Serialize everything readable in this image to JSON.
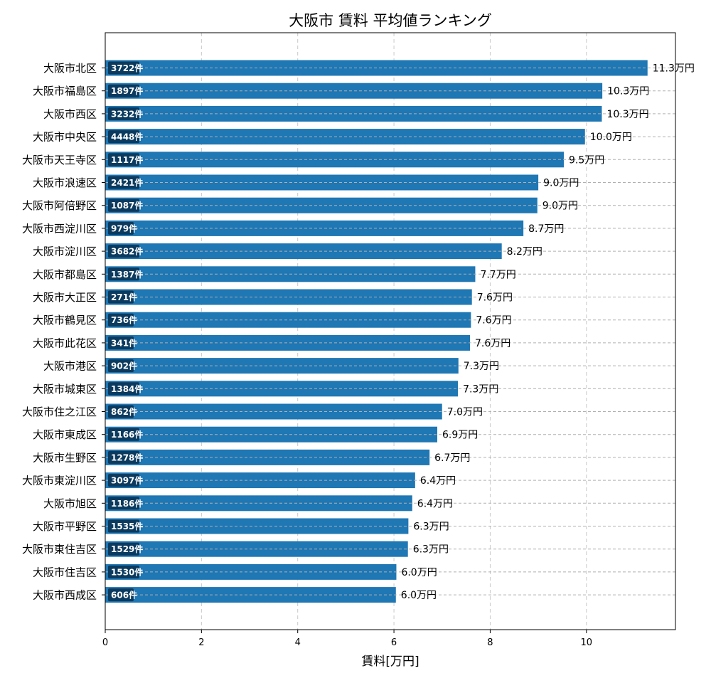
{
  "chart_data": {
    "type": "bar",
    "orientation": "horizontal",
    "title": "大阪市 賃料 平均値ランキング",
    "xlabel": "賃料[万円]",
    "ylabel": "",
    "xlim": [
      0,
      11.85
    ],
    "xticks": [
      0,
      2,
      4,
      6,
      8,
      10
    ],
    "grid": true,
    "bar_color": "#1f77b4",
    "count_badge_color": "#0b3a5e",
    "value_suffix": "万円",
    "categories": [
      "大阪市北区",
      "大阪市福島区",
      "大阪市西区",
      "大阪市中央区",
      "大阪市天王寺区",
      "大阪市浪速区",
      "大阪市阿倍野区",
      "大阪市西淀川区",
      "大阪市淀川区",
      "大阪市都島区",
      "大阪市大正区",
      "大阪市鶴見区",
      "大阪市此花区",
      "大阪市港区",
      "大阪市城東区",
      "大阪市住之江区",
      "大阪市東成区",
      "大阪市生野区",
      "大阪市東淀川区",
      "大阪市旭区",
      "大阪市平野区",
      "大阪市東住吉区",
      "大阪市住吉区",
      "大阪市西成区"
    ],
    "values": [
      11.27,
      10.33,
      10.32,
      9.97,
      9.53,
      9.0,
      8.98,
      8.69,
      8.24,
      7.69,
      7.62,
      7.6,
      7.58,
      7.34,
      7.33,
      7.0,
      6.9,
      6.74,
      6.44,
      6.38,
      6.3,
      6.29,
      6.05,
      6.04
    ],
    "value_labels": [
      "11.3万円",
      "10.3万円",
      "10.3万円",
      "10.0万円",
      "9.5万円",
      "9.0万円",
      "9.0万円",
      "8.7万円",
      "8.2万円",
      "7.7万円",
      "7.6万円",
      "7.6万円",
      "7.6万円",
      "7.3万円",
      "7.3万円",
      "7.0万円",
      "6.9万円",
      "6.7万円",
      "6.4万円",
      "6.4万円",
      "6.3万円",
      "6.3万円",
      "6.0万円",
      "6.0万円"
    ],
    "count_labels": [
      "3722件",
      "1897件",
      "3232件",
      "4448件",
      "1117件",
      "2421件",
      "1087件",
      "979件",
      "3682件",
      "1387件",
      "271件",
      "736件",
      "341件",
      "902件",
      "1384件",
      "862件",
      "1166件",
      "1278件",
      "3097件",
      "1186件",
      "1535件",
      "1529件",
      "1530件",
      "606件"
    ]
  }
}
